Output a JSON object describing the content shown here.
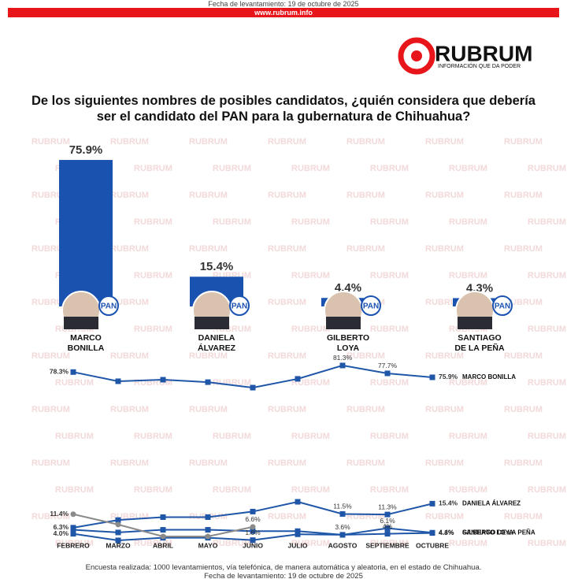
{
  "header": {
    "date": "Fecha de levantamiento: 19 de octubre de 2025",
    "url": "www.rubrum.info",
    "logo": "RUBRUM",
    "tagline": "INFORMACIÓN QUE DA PODER",
    "watermark": "RUBRUM",
    "party": "PAN",
    "title": "De los siguientes nombres de posibles candidatos, ¿quién considera que debería ser el candidato del PAN para la gubernatura de Chihuahua?"
  },
  "chart_data": [
    {
      "type": "bar",
      "categories": [
        [
          "MARCO",
          "BONILLA"
        ],
        [
          "DANIELA",
          "ÁLVAREZ"
        ],
        [
          "GILBERTO",
          "LOYA"
        ],
        [
          "SANTIAGO",
          "DE LA PEÑA"
        ]
      ],
      "values": [
        75.9,
        15.4,
        4.4,
        4.3
      ],
      "value_labels": [
        "75.9%",
        "15.4%",
        "4.4%",
        "4.3%"
      ],
      "color": "#1a52b0",
      "ylim": [
        0,
        100
      ]
    },
    {
      "type": "line",
      "categories": [
        "FEBRERO",
        "MARZO",
        "ABRIL",
        "MAYO",
        "JUNIO",
        "JULIO",
        "AGOSTO",
        "SEPTIEMBRE",
        "OCTUBRE"
      ],
      "ylim": [
        0,
        17
      ],
      "y2lim": [
        70,
        82
      ],
      "series": [
        {
          "name": "MARCO BONILLA",
          "color": "#1f56a8",
          "axis": "y2",
          "values": [
            78.3,
            74.1,
            74.8,
            73.7,
            71.2,
            75.2,
            81.3,
            77.7,
            75.9
          ],
          "value_labels": [
            "78.3%",
            null,
            null,
            null,
            null,
            null,
            "81.3%",
            "77.7%",
            "75.9%"
          ]
        },
        {
          "name": "DANIELA ÁLVAREZ",
          "color": "#1f56a8",
          "values": [
            6.3,
            9.2,
            10.3,
            10.3,
            12.4,
            16.1,
            11.5,
            11.3,
            15.4
          ],
          "value_labels": [
            "6.3%",
            null,
            null,
            null,
            null,
            null,
            "11.5%",
            "11.3%",
            "15.4%"
          ]
        },
        {
          "name": "GILBERTO LOYA",
          "color": "#1f56a8",
          "values": [
            5.5,
            4.5,
            5.5,
            5.5,
            5.0,
            5.0,
            3.6,
            6.1,
            4.4
          ],
          "value_labels": [
            null,
            null,
            null,
            null,
            null,
            null,
            "3.6%",
            "6.1%",
            "4.4%"
          ]
        },
        {
          "name": "SANTIAGO DE LA PEÑA",
          "color": "#1f56a8",
          "values": [
            4.0,
            1.5,
            2.5,
            2.5,
            1.6,
            3.8,
            3.6,
            4,
            4.3
          ],
          "value_labels": [
            "4.0%",
            null,
            null,
            null,
            "1.6%",
            null,
            null,
            "4%",
            "4.3%"
          ]
        },
        {
          "color": "#8a8a8a",
          "values": [
            11.4,
            7.5,
            3,
            3,
            6.6,
            null,
            null,
            null,
            null
          ],
          "value_labels": [
            "11.4%",
            null,
            null,
            null,
            "6.6%",
            null,
            null,
            null,
            null
          ]
        }
      ]
    }
  ],
  "footer": {
    "note": "Encuesta realizada: 1000 levantamientos, vía telefónica, de manera automática y aleatoria, en el estado de Chihuahua.",
    "date": "Fecha de levantamiento: 19 de octubre de 2025"
  }
}
